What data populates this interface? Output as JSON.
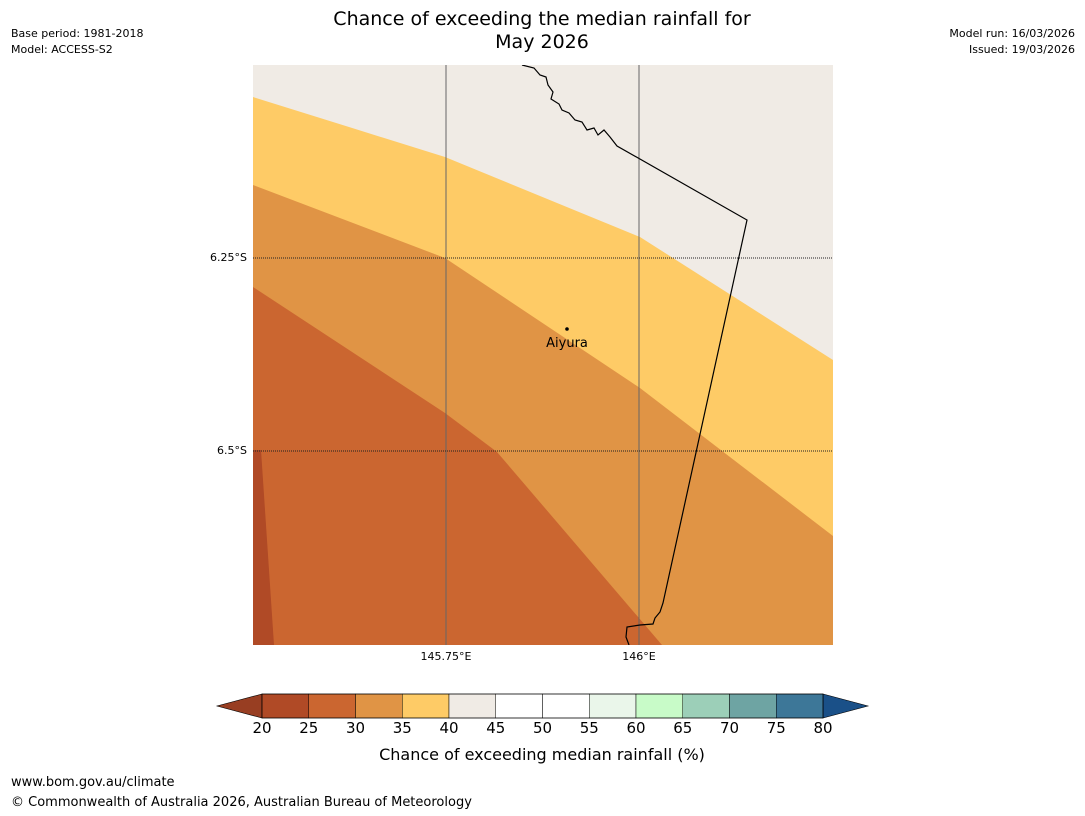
{
  "title": {
    "line1": "Chance of exceeding the median rainfall for",
    "line2": "May 2026"
  },
  "meta_left": {
    "base_period": "Base period: 1981-2018",
    "model": "Model: ACCESS-S2"
  },
  "meta_right": {
    "model_run": "Model run: 16/03/2026",
    "issued": "Issued: 19/03/2026"
  },
  "map": {
    "lat_labels": [
      "6.25°S",
      "6.5°S"
    ],
    "lon_labels": [
      "145.75°E",
      "146°E"
    ],
    "place": {
      "name": "Aiyura"
    },
    "band_colors": {
      "b20_25": "#b04a26",
      "b25_30": "#cb6630",
      "b30_35": "#e09445",
      "b35_40": "#fecb66",
      "b40_45": "#f0ebe5"
    }
  },
  "colorbar": {
    "label": "Chance of exceeding median rainfall (%)",
    "ticks": [
      "20",
      "25",
      "30",
      "35",
      "40",
      "45",
      "50",
      "55",
      "60",
      "65",
      "70",
      "75",
      "80"
    ],
    "under_color": "#983e22",
    "over_color": "#1a5088",
    "colors": [
      "#b04a26",
      "#cb6630",
      "#e09445",
      "#fecb66",
      "#f0ebe5",
      "#ffffff",
      "#ffffff",
      "#eaf6ea",
      "#c8fbc8",
      "#9ccfb8",
      "#6ea4a3",
      "#3d7798"
    ]
  },
  "footer": {
    "url": "www.bom.gov.au/climate",
    "copyright": "© Commonwealth of Australia 2026, Australian Bureau of Meteorology"
  }
}
